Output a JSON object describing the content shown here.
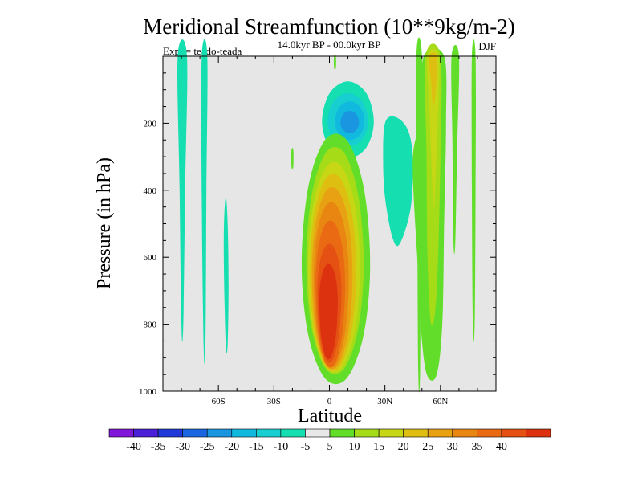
{
  "chart_data": {
    "type": "contour",
    "title": "Meridional Streamfunction (10**9kg/m-2)",
    "subtitle": "14.0kyr BP - 00.0kyr BP",
    "experiment_label": "Expt = teado-teada",
    "season_label": "DJF",
    "xlabel": "Latitude",
    "ylabel": "Pressure (in hPa)",
    "xlim": [
      -90,
      90
    ],
    "ylim": [
      1000,
      0
    ],
    "x_ticks": [
      {
        "value": -60,
        "label": "60S"
      },
      {
        "value": -30,
        "label": "30S"
      },
      {
        "value": 0,
        "label": "0"
      },
      {
        "value": 30,
        "label": "30N"
      },
      {
        "value": 60,
        "label": "60N"
      }
    ],
    "y_ticks": [
      {
        "value": 200,
        "label": "200"
      },
      {
        "value": 400,
        "label": "400"
      },
      {
        "value": 600,
        "label": "600"
      },
      {
        "value": 800,
        "label": "800"
      },
      {
        "value": 1000,
        "label": "1000"
      }
    ],
    "background_color": "#e6e6e6",
    "colorbar": {
      "colors": [
        "#7f16d8",
        "#4a1fd8",
        "#2139d8",
        "#1a66e0",
        "#1a96e0",
        "#12b9df",
        "#17cfd0",
        "#15dfb0",
        "#e8e8e8",
        "#62de2a",
        "#a6dc17",
        "#c7d615",
        "#dfbe12",
        "#e8a112",
        "#e98612",
        "#e96a12",
        "#e45112",
        "#dd3210"
      ],
      "labels": [
        "-40",
        "-35",
        "-30",
        "-25",
        "-20",
        "-15",
        "-10",
        "-5",
        "5",
        "10",
        "15",
        "20",
        "25",
        "30",
        "35",
        "40"
      ]
    },
    "features": [
      {
        "name": "southern-strip-1",
        "lat_range": [
          -82,
          -77
        ],
        "p_range": [
          0,
          800
        ],
        "level": 7
      },
      {
        "name": "southern-strip-2",
        "lat_range": [
          -69,
          -66
        ],
        "p_range": [
          0,
          860
        ],
        "level": 7
      },
      {
        "name": "southern-strip-3",
        "lat_range": [
          -57,
          -55
        ],
        "p_range": [
          420,
          860
        ],
        "level": 7
      },
      {
        "name": "tropical-cell-positive",
        "lat_range": [
          -15,
          22
        ],
        "p_range": [
          250,
          980
        ],
        "peak_value": 45,
        "peak_lat": 0,
        "peak_p": 750
      },
      {
        "name": "upper-negative-cell",
        "lat_range": [
          -5,
          20
        ],
        "p_range": [
          80,
          300
        ],
        "peak_value": -25,
        "peak_lat": 10,
        "peak_p": 200
      },
      {
        "name": "northern-negative-band",
        "lat_range": [
          30,
          45
        ],
        "p_range": [
          200,
          600
        ],
        "level": 7
      },
      {
        "name": "northern-positive-band",
        "lat_range": [
          52,
          62
        ],
        "p_range": [
          0,
          960
        ],
        "peak_value": 25
      },
      {
        "name": "northern-strip-1",
        "lat_range": [
          47,
          50
        ],
        "p_range": [
          0,
          950
        ],
        "level": 9
      },
      {
        "name": "northern-strip-2",
        "lat_range": [
          66,
          70
        ],
        "p_range": [
          0,
          560
        ],
        "level": 9
      },
      {
        "name": "northern-strip-3",
        "lat_range": [
          77,
          79
        ],
        "p_range": [
          0,
          800
        ],
        "level": 9
      }
    ]
  }
}
